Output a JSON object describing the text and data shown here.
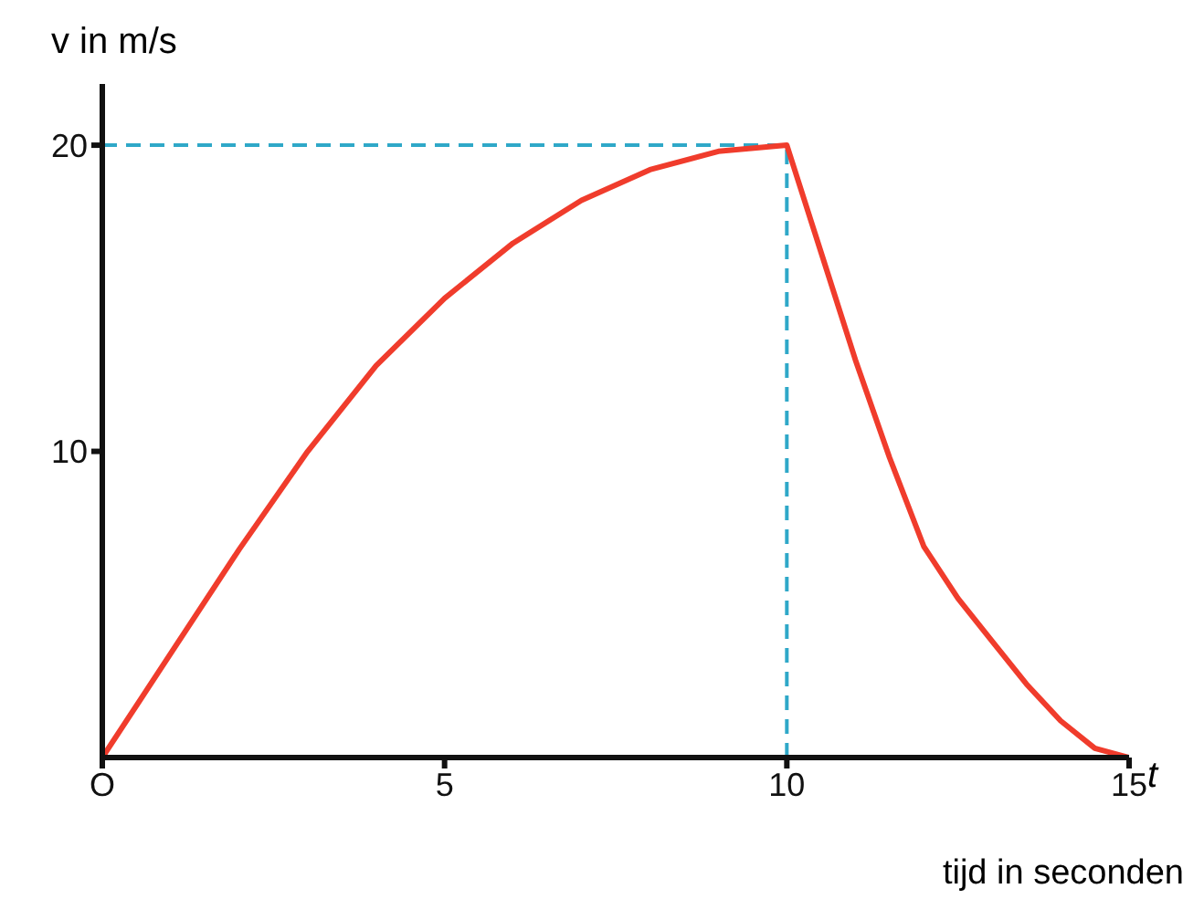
{
  "chart_data": {
    "type": "line",
    "ylabel": "v in m/s",
    "xlabel": "t",
    "annotations": [
      "tijd in seconden"
    ],
    "x": [
      0,
      1,
      2,
      3,
      4,
      5,
      6,
      7,
      8,
      9,
      10,
      10.5,
      11,
      11.5,
      12,
      12.5,
      13,
      13.5,
      14,
      14.5,
      15
    ],
    "series": [
      {
        "color": "#f03c2c",
        "values": [
          0,
          3.4,
          6.8,
          10,
          12.8,
          15,
          16.8,
          18.2,
          19.2,
          19.8,
          20,
          16.5,
          13,
          9.8,
          6.9,
          5.2,
          3.8,
          2.4,
          1.2,
          0.3,
          0
        ]
      }
    ],
    "xlim": [
      0,
      15
    ],
    "ylim": [
      0,
      22
    ],
    "xticks": [
      {
        "value": 0,
        "label": "O"
      },
      5,
      10,
      15
    ],
    "yticks": [
      10,
      20
    ],
    "ref_lines": [
      {
        "axis": "y",
        "value": 20,
        "color": "#2fa8c8",
        "line_style": "dashed"
      },
      {
        "axis": "x",
        "value": 10,
        "color": "#2fa8c8",
        "line_style": "dashed"
      }
    ],
    "grid": false,
    "marker": "none",
    "line_style": "solid"
  }
}
